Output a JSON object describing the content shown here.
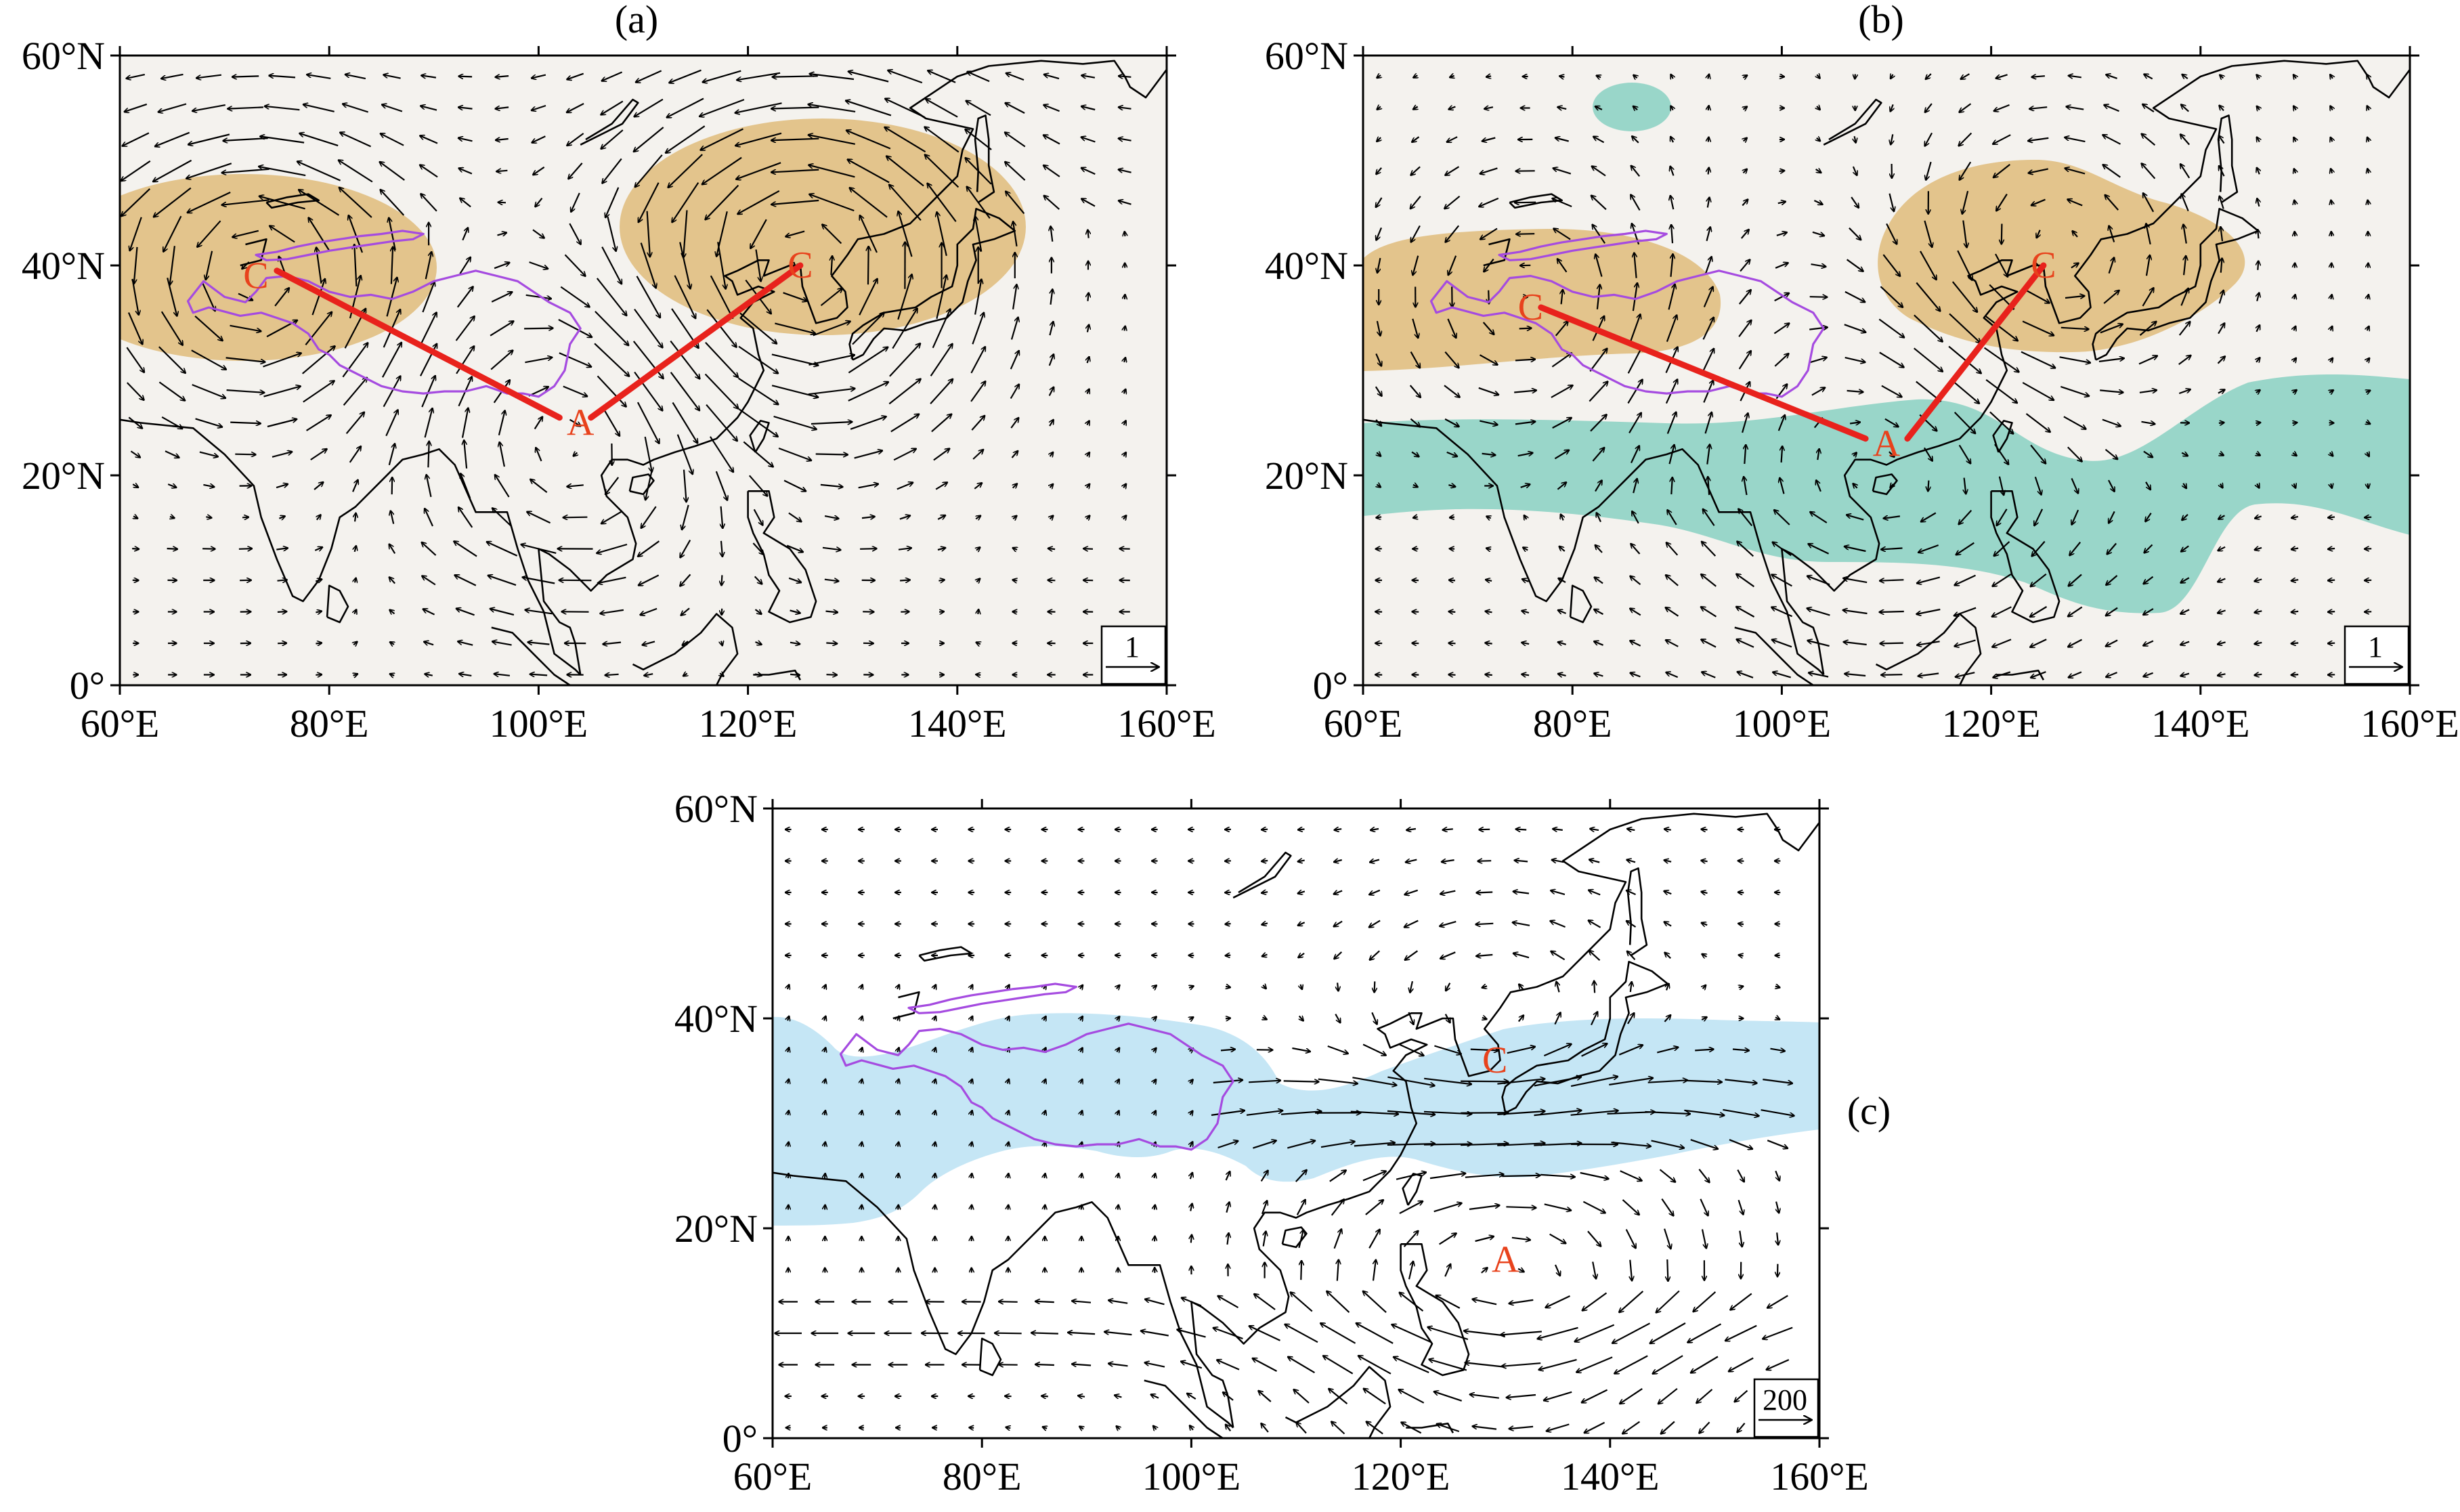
{
  "figure": {
    "colors": {
      "land_background": "#f4f2ee",
      "positive_shading": "#e3c48c",
      "negative_shading": "#99d6c9",
      "panel_c_shading": "#c5e6f5",
      "plateau_outline": "#a54be0",
      "path_line": "#e8221c",
      "center_label": "#e8421c",
      "coastline": "#000000",
      "vector": "#000000"
    },
    "lat_ticks": [
      "0°",
      "20°N",
      "40°N",
      "60°N"
    ],
    "lon_ticks": [
      "60°E",
      "80°E",
      "100°E",
      "120°E",
      "140°E",
      "160°E"
    ],
    "panels": [
      {
        "id": "a",
        "tag": "(a)",
        "reference_vector": "1",
        "centers": [
          {
            "label": "C",
            "lon": 73,
            "lat": 39
          },
          {
            "label": "A",
            "lon": 104,
            "lat": 25
          },
          {
            "label": "C",
            "lon": 125,
            "lat": 40
          }
        ],
        "path": [
          [
            75,
            39.5
          ],
          [
            102,
            25.5
          ],
          [
            105,
            25.5
          ],
          [
            125,
            40
          ]
        ]
      },
      {
        "id": "b",
        "tag": "(b)",
        "reference_vector": "1",
        "centers": [
          {
            "label": "C",
            "lon": 76,
            "lat": 36
          },
          {
            "label": "A",
            "lon": 110,
            "lat": 23
          },
          {
            "label": "C",
            "lon": 125,
            "lat": 40
          }
        ],
        "path": [
          [
            77,
            36
          ],
          [
            108,
            23.5
          ],
          [
            112,
            23.5
          ],
          [
            125,
            40
          ]
        ]
      },
      {
        "id": "c",
        "tag": "(c)",
        "reference_vector": "200",
        "centers": [
          {
            "label": "C",
            "lon": 129,
            "lat": 36
          },
          {
            "label": "A",
            "lon": 130,
            "lat": 17
          }
        ],
        "path": []
      }
    ]
  }
}
